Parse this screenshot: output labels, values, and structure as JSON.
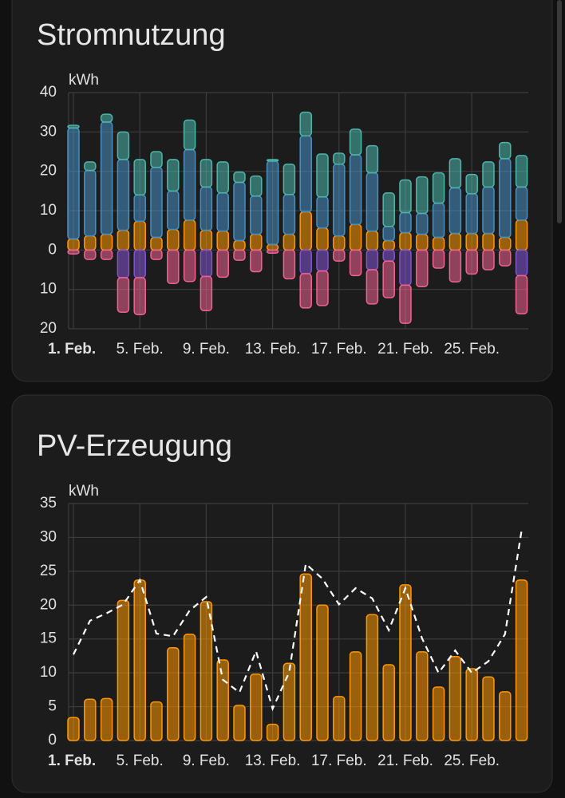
{
  "chart_data": [
    {
      "type": "bar",
      "stacked": true,
      "title": "Stromnutzung",
      "y_label": "kWh",
      "categories": [
        "1. Feb.",
        null,
        null,
        null,
        "5. Feb.",
        null,
        null,
        null,
        "9. Feb.",
        null,
        null,
        null,
        "13. Feb.",
        null,
        null,
        null,
        "17. Feb.",
        null,
        null,
        null,
        "21. Feb.",
        null,
        null,
        null,
        "25. Feb.",
        null,
        null,
        null
      ],
      "ylim": [
        -20,
        40
      ],
      "yticks": [
        40,
        30,
        20,
        10,
        0,
        {
          "value": -10,
          "label": "10"
        },
        {
          "value": -20,
          "label": "20"
        }
      ],
      "grid": true,
      "series": [
        {
          "color": "#ff9800",
          "values": [
            2.8,
            3.6,
            4,
            5,
            7.3,
            3.2,
            5.2,
            7.6,
            5,
            4.8,
            2.4,
            4,
            1.4,
            4,
            9.7,
            5.6,
            3.6,
            6.5,
            4.8,
            2.4,
            4.4,
            4,
            3.2,
            4.2,
            4.2,
            4.2,
            3.2,
            7.6
          ]
        },
        {
          "color": "#488fc2",
          "values": [
            28.2,
            16.6,
            28.5,
            18,
            6.7,
            17.8,
            9.8,
            17.9,
            11,
            9.7,
            14.8,
            9.7,
            21.2,
            10.1,
            19.3,
            7.9,
            18.2,
            17.7,
            14.8,
            3.6,
            5.1,
            5.3,
            8.7,
            11.6,
            10.1,
            11.8,
            20,
            8.4
          ]
        },
        {
          "color": "#4db6ac",
          "values": [
            0.7,
            2.2,
            2,
            7,
            9,
            4,
            8,
            7.5,
            7,
            7.9,
            2.6,
            5.1,
            0.4,
            7.7,
            6,
            10.9,
            2.8,
            6.5,
            6.9,
            8.5,
            8.3,
            9.3,
            7.7,
            7.4,
            4.9,
            6.4,
            4.1,
            8
          ]
        },
        {
          "color": "#8353d4",
          "values": [
            0,
            0,
            0,
            -7,
            -7,
            0,
            0,
            0,
            -6.7,
            0,
            0,
            0,
            0,
            0,
            -6,
            -5.3,
            0,
            0,
            -5,
            -2.8,
            -8.9,
            0,
            0,
            0,
            0,
            0,
            0,
            -6.5
          ]
        },
        {
          "color": "#f06292",
          "values": [
            -1,
            -2.4,
            -2.4,
            -8.8,
            -9.4,
            -2.4,
            -8.5,
            -8,
            -8.7,
            -6.9,
            -2.6,
            -5.5,
            -0.8,
            -7.3,
            -8.7,
            -8.8,
            -2.8,
            -6.5,
            -8.7,
            -9.3,
            -9.7,
            -9.3,
            -4.6,
            -8.1,
            -6.1,
            -5,
            -4,
            -9.7
          ]
        }
      ]
    },
    {
      "type": "bar",
      "stacked": false,
      "title": "PV-Erzeugung",
      "y_label": "kWh",
      "categories": [
        "1. Feb.",
        null,
        null,
        null,
        "5. Feb.",
        null,
        null,
        null,
        "9. Feb.",
        null,
        null,
        null,
        "13. Feb.",
        null,
        null,
        null,
        "17. Feb.",
        null,
        null,
        null,
        "21. Feb.",
        null,
        null,
        null,
        "25. Feb.",
        null,
        null,
        null
      ],
      "ylim": [
        0,
        35
      ],
      "yticks": [
        35,
        30,
        25,
        20,
        15,
        10,
        5,
        0
      ],
      "grid": true,
      "series": [
        {
          "type": "bar",
          "color": "#ff9800",
          "values": [
            3.4,
            6.1,
            6.2,
            20.7,
            23.7,
            5.7,
            13.7,
            15.7,
            20.5,
            11.9,
            5.2,
            9.8,
            2.4,
            11.4,
            24.6,
            20,
            6.5,
            13.1,
            18.6,
            11.2,
            23,
            13.1,
            7.9,
            12.4,
            10.6,
            9.4,
            7.2,
            23.7
          ]
        },
        {
          "type": "line",
          "dashed": true,
          "color": "#ffffff",
          "values": [
            12.7,
            17.7,
            18.8,
            20.1,
            23.7,
            15.8,
            15.4,
            19.2,
            21.2,
            9,
            7.1,
            13.2,
            4.7,
            10.1,
            26.1,
            23.9,
            20.1,
            22.5,
            21,
            16.3,
            22.5,
            15.1,
            10,
            13.3,
            10,
            11.7,
            15.7,
            31
          ]
        }
      ]
    }
  ]
}
